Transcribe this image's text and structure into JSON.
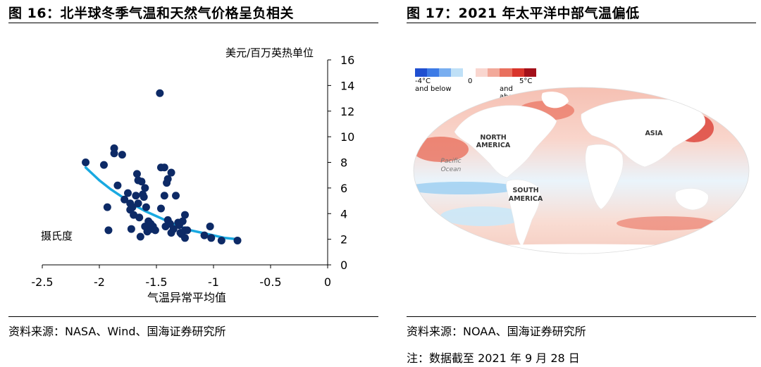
{
  "left_panel": {
    "title": "图 16：北半球冬季气温和天然气价格呈负相关",
    "source": "资料来源：NASA、Wind、国海证券研究所"
  },
  "right_panel": {
    "title": "图 17：2021 年太平洋中部气温偏低",
    "source": "资料来源：NOAA、国海证券研究所",
    "note": "注：数据截至 2021 年 9 月 28 日",
    "legend": {
      "cold_label": "-4°C",
      "cold_sub": "and below",
      "zero_label": "0",
      "warm_label": "5°C",
      "warm_sub": "and above",
      "cold_colors": [
        "#1f4fd0",
        "#3d7be6",
        "#79aef0",
        "#bfe0f7"
      ],
      "warm_colors": [
        "#f9d6cf",
        "#f2a99a",
        "#e9705e",
        "#d9342b",
        "#a3101a"
      ]
    },
    "map_labels": {
      "north_america": [
        "NORTH",
        "AMERICA"
      ],
      "south_america": [
        "SOUTH",
        "AMERICA"
      ],
      "asia": "ASIA",
      "pacific": [
        "Pacific",
        "Ocean"
      ]
    }
  },
  "chart_data": {
    "type": "scatter",
    "title": "",
    "xlabel": "气温异常平均值",
    "ylabel": "美元/百万英热单位",
    "annotation": "摄氏度",
    "xlim": [
      -2.5,
      0
    ],
    "ylim": [
      0,
      16
    ],
    "xticks": [
      -2.5,
      -2,
      -1.5,
      -1,
      -0.5,
      0
    ],
    "xtick_labels": [
      "-2.5",
      "-2",
      "-1.5",
      "-1",
      "-0.5",
      "0"
    ],
    "yticks": [
      0,
      2,
      4,
      6,
      8,
      10,
      12,
      14,
      16
    ],
    "ytick_labels": [
      "0",
      "2",
      "4",
      "6",
      "8",
      "10",
      "12",
      "14",
      "16"
    ],
    "y_axis_side": "right",
    "grid": false,
    "colors": {
      "points": "#0d2a66",
      "trend": "#19a9e1"
    },
    "points": [
      [
        -2.12,
        8.0
      ],
      [
        -1.96,
        7.8
      ],
      [
        -1.87,
        9.1
      ],
      [
        -1.87,
        8.7
      ],
      [
        -1.8,
        8.6
      ],
      [
        -1.93,
        4.5
      ],
      [
        -1.92,
        2.7
      ],
      [
        -1.84,
        6.2
      ],
      [
        -1.78,
        5.1
      ],
      [
        -1.75,
        5.6
      ],
      [
        -1.73,
        4.8
      ],
      [
        -1.73,
        4.3
      ],
      [
        -1.71,
        4.5
      ],
      [
        -1.7,
        3.9
      ],
      [
        -1.72,
        2.8
      ],
      [
        -1.68,
        5.4
      ],
      [
        -1.67,
        7.1
      ],
      [
        -1.66,
        6.6
      ],
      [
        -1.66,
        4.8
      ],
      [
        -1.65,
        3.7
      ],
      [
        -1.64,
        2.2
      ],
      [
        -1.63,
        6.5
      ],
      [
        -1.62,
        5.5
      ],
      [
        -1.61,
        5.3
      ],
      [
        -1.6,
        6.0
      ],
      [
        -1.6,
        3.0
      ],
      [
        -1.59,
        4.5
      ],
      [
        -1.58,
        2.6
      ],
      [
        -1.58,
        2.9
      ],
      [
        -1.57,
        3.4
      ],
      [
        -1.56,
        3.1
      ],
      [
        -1.55,
        3.2
      ],
      [
        -1.54,
        2.8
      ],
      [
        -1.53,
        3.0
      ],
      [
        -1.51,
        2.7
      ],
      [
        -1.47,
        13.4
      ],
      [
        -1.46,
        7.6
      ],
      [
        -1.43,
        7.6
      ],
      [
        -1.43,
        5.4
      ],
      [
        -1.46,
        4.4
      ],
      [
        -1.42,
        3.0
      ],
      [
        -1.41,
        6.4
      ],
      [
        -1.4,
        6.7
      ],
      [
        -1.4,
        3.5
      ],
      [
        -1.38,
        3.2
      ],
      [
        -1.37,
        7.2
      ],
      [
        -1.37,
        2.5
      ],
      [
        -1.35,
        2.8
      ],
      [
        -1.33,
        5.4
      ],
      [
        -1.31,
        3.3
      ],
      [
        -1.3,
        3.1
      ],
      [
        -1.29,
        2.5
      ],
      [
        -1.28,
        2.4
      ],
      [
        -1.27,
        3.4
      ],
      [
        -1.25,
        2.7
      ],
      [
        -1.25,
        2.1
      ],
      [
        -1.23,
        2.7
      ],
      [
        -1.25,
        3.9
      ],
      [
        -1.08,
        2.3
      ],
      [
        -1.03,
        3.0
      ],
      [
        -1.02,
        2.1
      ],
      [
        -0.93,
        1.9
      ],
      [
        -0.79,
        1.9
      ]
    ],
    "trendline": [
      [
        -2.12,
        7.6
      ],
      [
        -2.0,
        6.6
      ],
      [
        -1.9,
        5.9
      ],
      [
        -1.8,
        5.3
      ],
      [
        -1.7,
        4.7
      ],
      [
        -1.6,
        4.2
      ],
      [
        -1.5,
        3.8
      ],
      [
        -1.4,
        3.4
      ],
      [
        -1.3,
        3.0
      ],
      [
        -1.2,
        2.7
      ],
      [
        -1.1,
        2.5
      ],
      [
        -1.0,
        2.3
      ],
      [
        -0.9,
        2.1
      ],
      [
        -0.79,
        2.0
      ]
    ]
  }
}
